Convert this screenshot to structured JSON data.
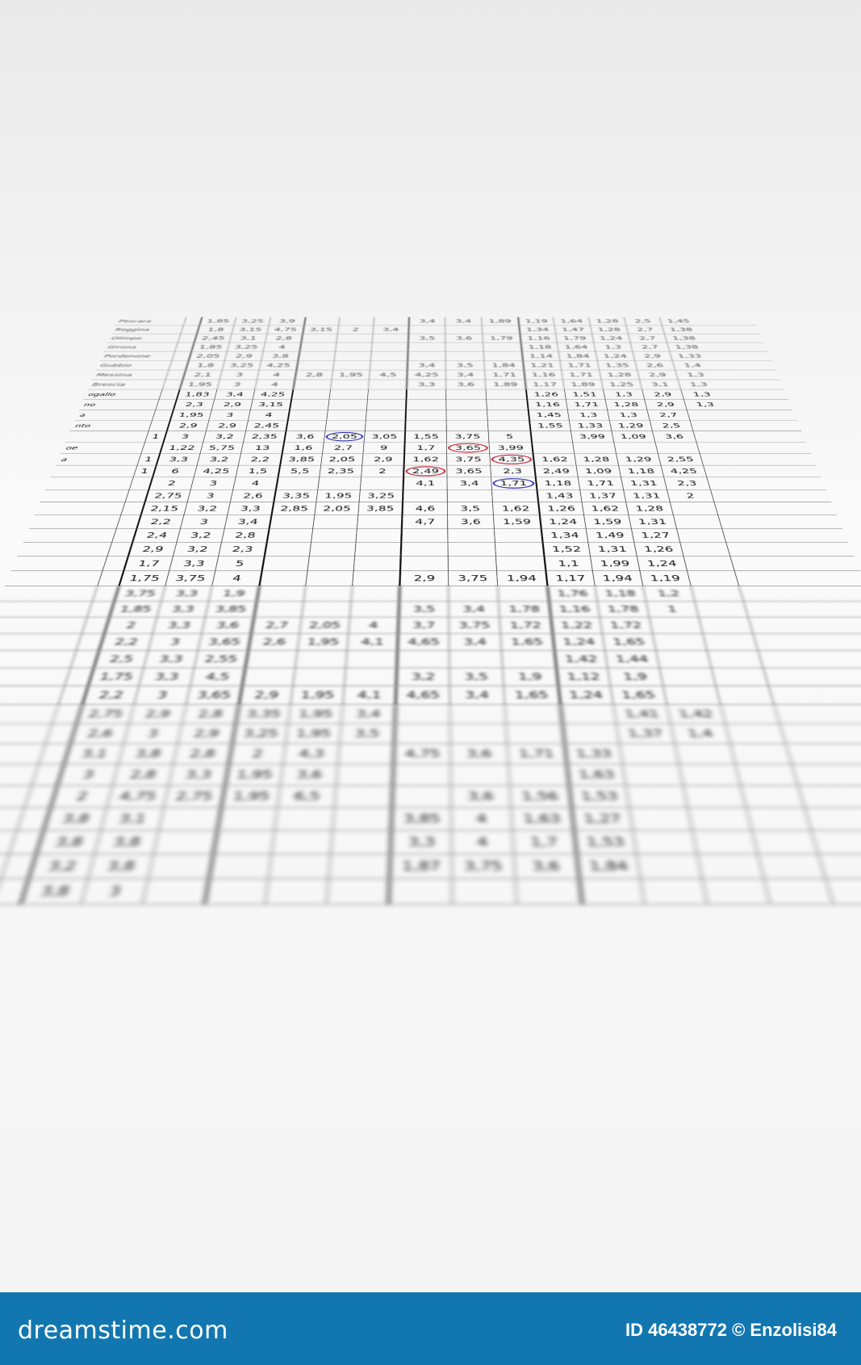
{
  "colors": {
    "footer_bg": "#1277b0",
    "circle_red": "#c0192c",
    "circle_blue": "#2424b0"
  },
  "footer": {
    "logo": "dreamstime.com",
    "credit": "ID 46438772 © Enzolisi84"
  },
  "sheet_rows": [
    {
      "name": "Pescara",
      "flag": "",
      "v": [
        "1,85",
        "3,25",
        "3,9",
        "",
        "",
        "",
        "3,4",
        "3,4",
        "1,89",
        "1,19",
        "1,64",
        "1,28",
        "2,5",
        "1,45"
      ]
    },
    {
      "name": "Reggina",
      "flag": "",
      "v": [
        "1,8",
        "3,15",
        "4,75",
        "3,15",
        "2",
        "3,4",
        "",
        "",
        "",
        "1,34",
        "1,47",
        "1,28",
        "2,7",
        "1,38"
      ]
    },
    {
      "name": "Olimpo",
      "flag": "",
      "v": [
        "2,45",
        "3,1",
        "2,8",
        "",
        "",
        "",
        "3,5",
        "3,6",
        "1,79",
        "1,16",
        "1,79",
        "1,24",
        "2,7",
        "1,38"
      ]
    },
    {
      "name": "Girona",
      "flag": "",
      "v": [
        "1,85",
        "3,25",
        "4",
        "",
        "",
        "",
        "",
        "",
        "",
        "1,18",
        "1,64",
        "1,3",
        "2,7",
        "1,38"
      ]
    },
    {
      "name": "Pordenone",
      "flag": "",
      "v": [
        "2,05",
        "2,9",
        "3,8",
        "",
        "",
        "",
        "",
        "",
        "",
        "1,14",
        "1,84",
        "1,24",
        "2,9",
        "1,33"
      ]
    },
    {
      "name": "Gubbio",
      "flag": "",
      "v": [
        "1,8",
        "3,25",
        "4,25",
        "",
        "",
        "",
        "3,4",
        "3,5",
        "1,84",
        "1,21",
        "1,71",
        "1,35",
        "2,6",
        "1,4"
      ]
    },
    {
      "name": "Messina",
      "flag": "",
      "v": [
        "2,1",
        "3",
        "4",
        "2,8",
        "1,95",
        "4,5",
        "4,25",
        "3,4",
        "1,71",
        "1,16",
        "1,71",
        "1,28",
        "2,9",
        "1,3"
      ]
    },
    {
      "name": "Brescia",
      "flag": "",
      "v": [
        "1,95",
        "3",
        "4",
        "",
        "",
        "",
        "3,3",
        "3,6",
        "1,89",
        "1,17",
        "1,89",
        "1,25",
        "3,1",
        "1,3"
      ]
    },
    {
      "name": "ogallo",
      "flag": "",
      "v": [
        "1,83",
        "3,4",
        "4,25",
        "",
        "",
        "",
        "",
        "",
        "",
        "1,26",
        "1,51",
        "1,3",
        "2,9",
        "1,3"
      ]
    },
    {
      "name": "no",
      "flag": "",
      "v": [
        "2,3",
        "2,9",
        "3,15",
        "",
        "",
        "",
        "",
        "",
        "",
        "1,16",
        "1,71",
        "1,28",
        "2,9",
        "1,3"
      ]
    },
    {
      "name": "a",
      "flag": "",
      "v": [
        "1,95",
        "3",
        "4",
        "",
        "",
        "",
        "",
        "",
        "",
        "1,45",
        "1,3",
        "1,3",
        "2,7",
        ""
      ]
    },
    {
      "name": "nto",
      "flag": "",
      "v": [
        "2,9",
        "2,9",
        "2,45",
        "",
        "",
        "",
        "",
        "",
        "",
        "1,55",
        "1,33",
        "1,29",
        "2,5",
        ""
      ]
    },
    {
      "name": "",
      "flag": "1",
      "v": [
        "3",
        "3,2",
        "2,35",
        "3,6",
        "2,05",
        "3,05",
        "1,55",
        "3,75",
        "5",
        "",
        "3,99",
        "1,09",
        "3,6",
        ""
      ],
      "circles": {
        "4": "blue"
      }
    },
    {
      "name": "oe",
      "flag": "",
      "v": [
        "1,22",
        "5,75",
        "13",
        "1,6",
        "2,7",
        "9",
        "1,7",
        "3,65",
        "3,99",
        "",
        "",
        "",
        "",
        ""
      ],
      "circles": {
        "7": "red"
      }
    },
    {
      "name": "a",
      "flag": "1",
      "v": [
        "3,3",
        "3,2",
        "2,2",
        "3,85",
        "2,05",
        "2,9",
        "1,62",
        "3,75",
        "4,35",
        "1,62",
        "1,28",
        "1,29",
        "2,55",
        ""
      ],
      "circles": {
        "8": "red"
      }
    },
    {
      "name": "",
      "flag": "1",
      "v": [
        "6",
        "4,25",
        "1,5",
        "5,5",
        "2,35",
        "2",
        "2,49",
        "3,65",
        "2,3",
        "2,49",
        "1,09",
        "1,18",
        "4,25",
        ""
      ],
      "circles": {
        "6": "red"
      }
    },
    {
      "name": "",
      "flag": "",
      "v": [
        "2",
        "3",
        "4",
        "",
        "",
        "",
        "4,1",
        "3,4",
        "1,71",
        "1,18",
        "1,71",
        "1,31",
        "2,3",
        ""
      ],
      "circles": {
        "8": "blue"
      }
    },
    {
      "name": "",
      "flag": "",
      "v": [
        "2,75",
        "3",
        "2,6",
        "3,35",
        "1,95",
        "3,25",
        "",
        "",
        "",
        "1,43",
        "1,37",
        "1,31",
        "2",
        ""
      ]
    },
    {
      "name": "",
      "flag": "",
      "v": [
        "2,15",
        "3,2",
        "3,3",
        "2,85",
        "2,05",
        "3,85",
        "4,6",
        "3,5",
        "1,62",
        "1,26",
        "1,62",
        "1,28",
        "",
        " "
      ]
    },
    {
      "name": "",
      "flag": "",
      "v": [
        "2,2",
        "3",
        "3,4",
        "",
        "",
        "",
        "4,7",
        "3,6",
        "1,59",
        "1,24",
        "1,59",
        "1,31",
        "",
        ""
      ]
    },
    {
      "name": "",
      "flag": "",
      "v": [
        "2,4",
        "3,2",
        "2,8",
        "",
        "",
        "",
        "",
        "",
        "",
        "1,34",
        "1,49",
        "1,27",
        "",
        ""
      ]
    },
    {
      "name": "",
      "flag": "",
      "v": [
        "2,9",
        "3,2",
        "2,3",
        "",
        "",
        "",
        "",
        "",
        "",
        "1,52",
        "1,31",
        "1,26",
        "",
        ""
      ]
    },
    {
      "name": "",
      "flag": "",
      "v": [
        "1,7",
        "3,3",
        "5",
        "",
        "",
        "",
        "",
        "",
        "",
        "1,1",
        "1,99",
        "1,24",
        "",
        ""
      ]
    },
    {
      "name": "",
      "flag": "",
      "v": [
        "1,75",
        "3,75",
        "4",
        "",
        "",
        "",
        "2,9",
        "3,75",
        "1,94",
        "1,17",
        "1,94",
        "1,19",
        "",
        ""
      ]
    },
    {
      "name": "",
      "flag": "",
      "v": [
        "3,75",
        "3,3",
        "1,9",
        "",
        "",
        "",
        "",
        "",
        "",
        "1,76",
        "1,18",
        "1,2",
        "",
        ""
      ]
    },
    {
      "name": "",
      "flag": "",
      "v": [
        "1,85",
        "3,3",
        "3,85",
        "",
        "",
        "",
        "3,5",
        "3,4",
        "1,78",
        "1,16",
        "1,78",
        "1",
        "",
        ""
      ]
    },
    {
      "name": "",
      "flag": "",
      "v": [
        "2",
        "3,3",
        "3,6",
        "2,7",
        "2,05",
        "4",
        "3,7",
        "3,75",
        "1,72",
        "1,22",
        "1,72",
        "",
        "",
        ""
      ]
    },
    {
      "name": "",
      "flag": "",
      "v": [
        "2,2",
        "3",
        "3,65",
        "2,6",
        "1,95",
        "4,1",
        "4,65",
        "3,4",
        "1,65",
        "1,24",
        "1,65",
        "",
        "",
        ""
      ]
    },
    {
      "name": "",
      "flag": "",
      "v": [
        "2,5",
        "3,3",
        "2,55",
        "",
        "",
        "",
        "",
        "",
        "",
        "1,42",
        "1,44",
        "",
        "",
        ""
      ]
    },
    {
      "name": "",
      "flag": "",
      "v": [
        "1,75",
        "3,3",
        "4,5",
        "",
        "",
        "",
        "3,2",
        "3,5",
        "1,9",
        "1,12",
        "1,9",
        "",
        "",
        ""
      ]
    },
    {
      "name": "",
      "flag": "",
      "v": [
        "2,2",
        "3",
        "3,65",
        "2,9",
        "1,95",
        "4,1",
        "4,65",
        "3,4",
        "1,65",
        "1,24",
        "1,65",
        "",
        "",
        ""
      ]
    },
    {
      "name": "",
      "flag": "",
      "v": [
        "2,75",
        "2,9",
        "2,8",
        "3,35",
        "1,95",
        "3,4",
        "",
        "",
        "",
        "",
        "1,41",
        "1,42",
        "",
        ""
      ]
    },
    {
      "name": "",
      "flag": "",
      "v": [
        "2,6",
        "3",
        "2,9",
        "3,25",
        "1,95",
        "3,5",
        "",
        "",
        "",
        "",
        "1,37",
        "1,4",
        "",
        ""
      ]
    },
    {
      "name": "",
      "flag": "",
      "v": [
        "3,1",
        "3,8",
        "2,8",
        "2",
        "4,3",
        "",
        "4,75",
        "3,6",
        "1,71",
        "1,33",
        "",
        "",
        "",
        ""
      ]
    },
    {
      "name": "",
      "flag": "",
      "v": [
        "3",
        "2,8",
        "3,3",
        "1,95",
        "3,6",
        "",
        "",
        "",
        "",
        "1,63",
        "",
        "",
        "",
        ""
      ]
    },
    {
      "name": "",
      "flag": "",
      "v": [
        "2",
        "4,75",
        "2,75",
        "1,95",
        "6,5",
        "",
        "",
        "3,6",
        "1,56",
        "1,53",
        "",
        "",
        "",
        ""
      ]
    },
    {
      "name": "",
      "flag": "",
      "v": [
        "3,8",
        "3,1",
        "",
        "",
        "",
        "",
        "3,85",
        "4",
        "1,63",
        "1,27",
        "",
        "",
        "",
        ""
      ]
    },
    {
      "name": "",
      "flag": "",
      "v": [
        "3,8",
        "3,8",
        "",
        "",
        "",
        "",
        "3,3",
        "4",
        "1,7",
        "1,53",
        "",
        "",
        "",
        ""
      ]
    },
    {
      "name": "",
      "flag": "",
      "v": [
        "3,2",
        "3,8",
        "",
        "",
        "",
        "",
        "1,87",
        "3,75",
        "3,6",
        "1,84",
        "",
        "",
        "",
        ""
      ]
    },
    {
      "name": "",
      "flag": "",
      "v": [
        "3,8",
        "3",
        "",
        "",
        "",
        "",
        "",
        "",
        "",
        "",
        "",
        "",
        "",
        ""
      ]
    }
  ]
}
